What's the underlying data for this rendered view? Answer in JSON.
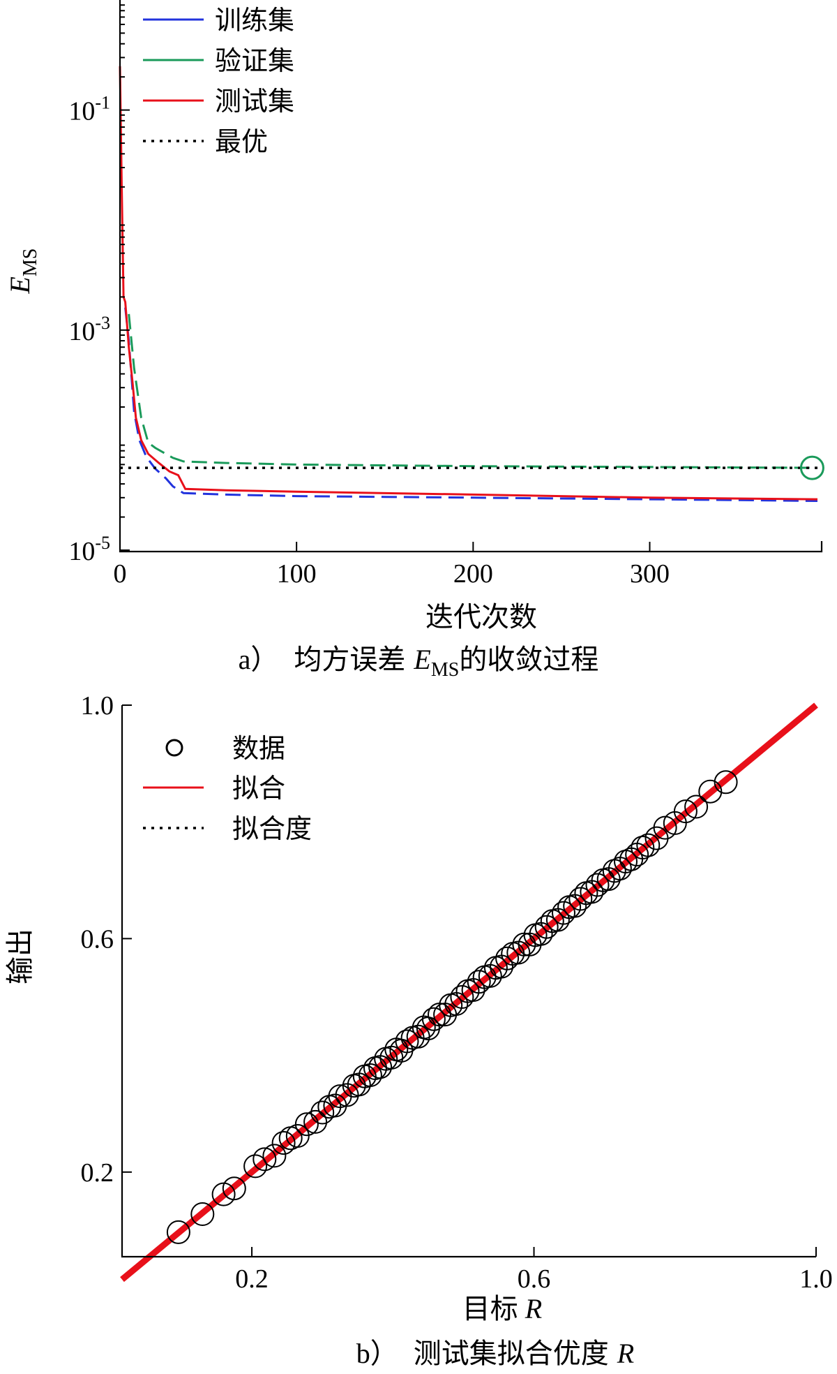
{
  "chart_data": [
    {
      "type": "line",
      "caption_prefix": "a）",
      "caption_main": "均方误差",
      "caption_var": "E",
      "caption_sub": "MS",
      "caption_suffix": "的收敛过程",
      "xlabel": "迭代次数",
      "ylabel_var": "E",
      "ylabel_sub": "MS",
      "y_scale": "log",
      "xlim": [
        0,
        395
      ],
      "ylim": [
        1e-05,
        1
      ],
      "x_ticks": [
        "0",
        "100",
        "200",
        "300"
      ],
      "y_ticks": [
        {
          "base": "10",
          "exp": "-1",
          "value": 0.1
        },
        {
          "base": "10",
          "exp": "-3",
          "value": 0.001
        },
        {
          "base": "10",
          "exp": "-5",
          "value": 1e-05
        }
      ],
      "legend_position": "top-left",
      "legend": [
        "训练集",
        "验证集",
        "测试集",
        "最优"
      ],
      "colors": {
        "train": "#2233dd",
        "val": "#1a9a5a",
        "test": "#e8101a",
        "best": "#000000"
      },
      "series": [
        {
          "name": "训练集",
          "style": "dashed",
          "x": [
            3,
            5,
            8,
            11,
            15,
            20,
            26,
            30,
            36,
            60,
            100,
            150,
            200,
            250,
            300,
            350,
            395
          ],
          "y": [
            0.0016,
            0.0008,
            0.00018,
            0.0001,
            7e-05,
            5.5e-05,
            4.5e-05,
            3.8e-05,
            3.3e-05,
            3.2e-05,
            3.1e-05,
            3.05e-05,
            3e-05,
            2.95e-05,
            2.9e-05,
            2.85e-05,
            2.8e-05
          ]
        },
        {
          "name": "验证集",
          "style": "dashed",
          "x": [
            5,
            8,
            12,
            16,
            20,
            26,
            30,
            36,
            60,
            100,
            200,
            300,
            395
          ],
          "y": [
            0.0014,
            0.00045,
            0.00016,
            9.5e-05,
            8.5e-05,
            7.5e-05,
            6.9e-05,
            6.4e-05,
            6.2e-05,
            6e-05,
            5.8e-05,
            5.7e-05,
            5.6e-05
          ]
        },
        {
          "name": "测试集",
          "style": "solid",
          "x": [
            0,
            1,
            2,
            3,
            5,
            7,
            9,
            12,
            16,
            22,
            28,
            33,
            37,
            60,
            100,
            200,
            300,
            395
          ],
          "y": [
            0.25,
            0.02,
            0.002,
            0.0018,
            0.0007,
            0.00035,
            0.00016,
            0.0001,
            7.5e-05,
            6.2e-05,
            5.2e-05,
            4.8e-05,
            3.6e-05,
            3.5e-05,
            3.4e-05,
            3.2e-05,
            3e-05,
            2.9e-05
          ]
        },
        {
          "name": "最优",
          "style": "dotted",
          "x": [
            0,
            395
          ],
          "y": [
            5.6e-05,
            5.6e-05
          ]
        }
      ],
      "best_marker": {
        "x": 392,
        "y": 5.6e-05
      }
    },
    {
      "type": "scatter",
      "caption_prefix": "b）",
      "caption_main": "测试集拟合优度",
      "caption_var": "R",
      "xlabel_main": "目标",
      "xlabel_var": "R",
      "ylabel": "输出",
      "xlim": [
        0.016,
        1.0
      ],
      "ylim": [
        0.055,
        1.0
      ],
      "x_ticks": [
        "0.2",
        "0.6",
        "1.0"
      ],
      "y_ticks": [
        "0.2",
        "0.6",
        "1.0"
      ],
      "legend_position": "top-left",
      "legend": [
        "数据",
        "拟合",
        "拟合度"
      ],
      "fit_line": {
        "slope": 1.0,
        "intercept": 0.0
      },
      "points_x": [
        0.096,
        0.13,
        0.16,
        0.175,
        0.205,
        0.218,
        0.232,
        0.245,
        0.255,
        0.265,
        0.278,
        0.29,
        0.3,
        0.31,
        0.318,
        0.325,
        0.335,
        0.345,
        0.352,
        0.36,
        0.368,
        0.375,
        0.382,
        0.39,
        0.398,
        0.405,
        0.412,
        0.42,
        0.428,
        0.436,
        0.444,
        0.45,
        0.458,
        0.466,
        0.474,
        0.482,
        0.49,
        0.498,
        0.506,
        0.514,
        0.522,
        0.53,
        0.538,
        0.546,
        0.554,
        0.562,
        0.57,
        0.578,
        0.586,
        0.594,
        0.602,
        0.61,
        0.618,
        0.626,
        0.634,
        0.642,
        0.65,
        0.658,
        0.666,
        0.674,
        0.682,
        0.69,
        0.698,
        0.706,
        0.714,
        0.722,
        0.73,
        0.738,
        0.746,
        0.754,
        0.762,
        0.774,
        0.786,
        0.8,
        0.815,
        0.83,
        0.85,
        0.872
      ],
      "points_y": [
        0.097,
        0.128,
        0.162,
        0.172,
        0.21,
        0.222,
        0.228,
        0.25,
        0.258,
        0.262,
        0.282,
        0.286,
        0.302,
        0.312,
        0.314,
        0.33,
        0.332,
        0.348,
        0.35,
        0.364,
        0.366,
        0.378,
        0.38,
        0.394,
        0.396,
        0.41,
        0.408,
        0.424,
        0.43,
        0.432,
        0.448,
        0.446,
        0.462,
        0.47,
        0.47,
        0.486,
        0.488,
        0.5,
        0.51,
        0.512,
        0.526,
        0.534,
        0.536,
        0.55,
        0.552,
        0.566,
        0.574,
        0.576,
        0.59,
        0.59,
        0.606,
        0.608,
        0.62,
        0.63,
        0.632,
        0.644,
        0.654,
        0.656,
        0.668,
        0.678,
        0.68,
        0.692,
        0.7,
        0.702,
        0.716,
        0.72,
        0.732,
        0.736,
        0.744,
        0.756,
        0.76,
        0.772,
        0.79,
        0.798,
        0.818,
        0.826,
        0.852,
        0.868
      ],
      "colors": {
        "data": "#000000",
        "fit": "#e8101a",
        "fit_degree": "#000000"
      }
    }
  ]
}
